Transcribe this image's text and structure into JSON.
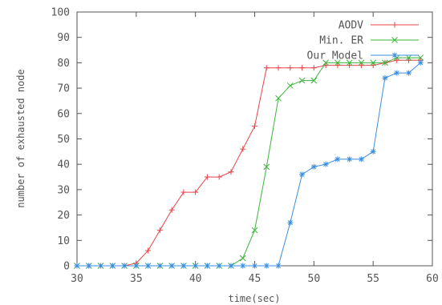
{
  "chart_data": {
    "type": "line",
    "xlabel": "time(sec)",
    "ylabel": "number of exhausted node",
    "xlim": [
      30,
      60
    ],
    "ylim": [
      0,
      100
    ],
    "xticks": [
      30,
      35,
      40,
      45,
      50,
      55,
      60
    ],
    "yticks": [
      0,
      10,
      20,
      30,
      40,
      50,
      60,
      70,
      80,
      90,
      100
    ],
    "grid": false,
    "legend_position": "top-right",
    "series": [
      {
        "name": "AODV",
        "color": "#e8434a",
        "marker": "plus",
        "x": [
          30,
          31,
          32,
          33,
          34,
          35,
          36,
          37,
          38,
          39,
          40,
          41,
          42,
          43,
          44,
          45,
          46,
          47,
          48,
          49,
          50,
          51,
          52,
          53,
          54,
          55,
          56,
          57,
          58,
          59
        ],
        "y": [
          0,
          0,
          0,
          0,
          0,
          1,
          6,
          14,
          22,
          29,
          29,
          35,
          35,
          37,
          46,
          55,
          78,
          78,
          78,
          78,
          78,
          79,
          79,
          79,
          79,
          79,
          80,
          81,
          81,
          81
        ]
      },
      {
        "name": "Min. ER",
        "color": "#3cb43c",
        "marker": "x",
        "x": [
          30,
          31,
          32,
          33,
          34,
          35,
          36,
          37,
          38,
          39,
          40,
          41,
          42,
          43,
          44,
          45,
          46,
          47,
          48,
          49,
          50,
          51,
          52,
          53,
          54,
          55,
          56,
          57,
          58,
          59
        ],
        "y": [
          0,
          0,
          0,
          0,
          0,
          0,
          0,
          0,
          0,
          0,
          0,
          0,
          0,
          0,
          3,
          14,
          39,
          66,
          71,
          73,
          73,
          80,
          80,
          80,
          80,
          80,
          80,
          82,
          82,
          82
        ]
      },
      {
        "name": "Our Model",
        "color": "#3a8ee0",
        "marker": "asterisk",
        "x": [
          30,
          31,
          32,
          33,
          34,
          35,
          36,
          37,
          38,
          39,
          40,
          41,
          42,
          43,
          44,
          45,
          46,
          47,
          48,
          49,
          50,
          51,
          52,
          53,
          54,
          55,
          56,
          57,
          58,
          59
        ],
        "y": [
          0,
          0,
          0,
          0,
          0,
          0,
          0,
          0,
          0,
          0,
          0,
          0,
          0,
          0,
          0,
          0,
          0,
          0,
          17,
          36,
          39,
          40,
          42,
          42,
          42,
          45,
          74,
          76,
          76,
          80
        ]
      }
    ]
  }
}
